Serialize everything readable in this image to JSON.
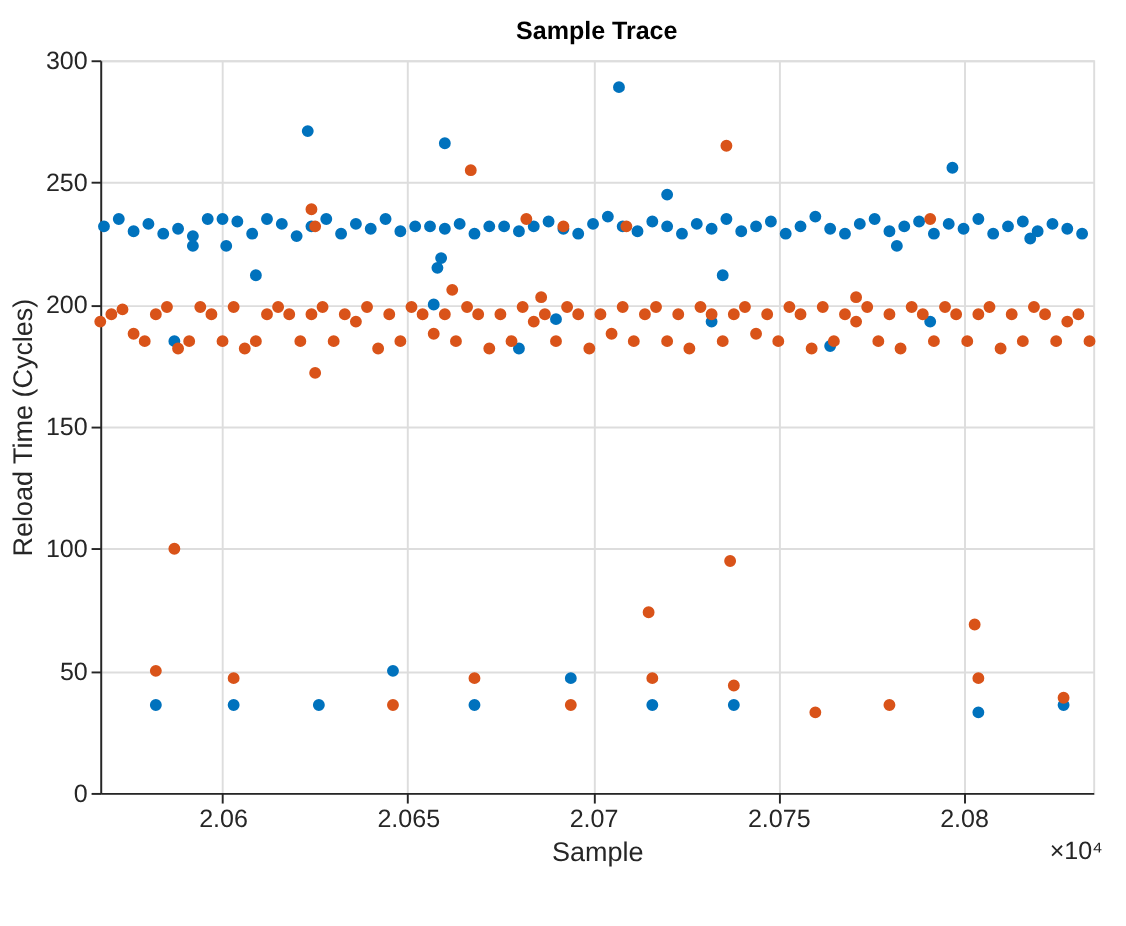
{
  "chart_data": {
    "type": "scatter",
    "title": "Sample Trace",
    "xlabel": "Sample",
    "ylabel": "Reload Time (Cycles)",
    "annotations": [
      "×10⁴"
    ],
    "xlim": [
      2.0567,
      2.0835
    ],
    "ylim": [
      0,
      300
    ],
    "xticks": [
      2.06,
      2.065,
      2.07,
      2.075,
      2.08
    ],
    "yticks": [
      0,
      50,
      100,
      150,
      200,
      250,
      300
    ],
    "grid": true,
    "marker": "circle",
    "series": [
      {
        "color": "#0072bd",
        "x": [
          2.0568,
          2.0572,
          2.0576,
          2.058,
          2.0584,
          2.0588,
          2.0592,
          2.0596,
          2.06,
          2.0604,
          2.0608,
          2.0612,
          2.0616,
          2.062,
          2.0624,
          2.0628,
          2.0632,
          2.0636,
          2.064,
          2.0644,
          2.0648,
          2.0652,
          2.0656,
          2.066,
          2.0664,
          2.0668,
          2.0672,
          2.0676,
          2.068,
          2.0684,
          2.0688,
          2.0692,
          2.0696,
          2.07,
          2.0704,
          2.0708,
          2.0712,
          2.0716,
          2.072,
          2.0724,
          2.0728,
          2.0732,
          2.0736,
          2.074,
          2.0744,
          2.0748,
          2.0752,
          2.0756,
          2.076,
          2.0764,
          2.0768,
          2.0772,
          2.0776,
          2.078,
          2.0784,
          2.0788,
          2.0792,
          2.0796,
          2.08,
          2.0804,
          2.0808,
          2.0812,
          2.0816,
          2.082,
          2.0824,
          2.0828,
          2.0832,
          2.0582,
          2.0603,
          2.0626,
          2.0646,
          2.0668,
          2.0694,
          2.0716,
          2.0738,
          2.076,
          2.078,
          2.0804,
          2.0827,
          2.0623,
          2.066,
          2.0707,
          2.072,
          2.0735,
          2.0797,
          2.0609,
          2.0592,
          2.0601,
          2.0658,
          2.0659,
          2.0657,
          2.068,
          2.069,
          2.0764,
          2.0791,
          2.0732,
          2.0782,
          2.0818,
          2.0587
        ],
        "values": [
          232,
          235,
          230,
          233,
          229,
          231,
          228,
          235,
          235,
          234,
          229,
          235,
          233,
          228,
          232,
          235,
          229,
          233,
          231,
          235,
          230,
          232,
          232,
          231,
          233,
          229,
          232,
          232,
          230,
          232,
          234,
          231,
          229,
          233,
          236,
          232,
          230,
          234,
          232,
          229,
          233,
          231,
          235,
          230,
          232,
          234,
          229,
          232,
          236,
          231,
          229,
          233,
          235,
          230,
          232,
          234,
          229,
          233,
          231,
          235,
          229,
          232,
          234,
          230,
          233,
          231,
          229,
          36,
          36,
          36,
          50,
          36,
          47,
          36,
          36,
          null,
          null,
          33,
          36,
          271,
          266,
          289,
          245,
          212,
          256,
          212,
          224,
          224,
          215,
          219,
          200,
          182,
          194,
          183,
          193,
          193,
          224,
          227,
          185
        ]
      },
      {
        "color": "#d95319",
        "x": [
          2.0567,
          2.057,
          2.0573,
          2.0576,
          2.0579,
          2.0582,
          2.0585,
          2.0588,
          2.0591,
          2.0594,
          2.0597,
          2.06,
          2.0603,
          2.0606,
          2.0609,
          2.0612,
          2.0615,
          2.0618,
          2.0621,
          2.0624,
          2.0627,
          2.063,
          2.0633,
          2.0636,
          2.0639,
          2.0642,
          2.0645,
          2.0648,
          2.0651,
          2.0654,
          2.0657,
          2.066,
          2.0663,
          2.0666,
          2.0669,
          2.0672,
          2.0675,
          2.0678,
          2.0681,
          2.0684,
          2.0687,
          2.069,
          2.0693,
          2.0696,
          2.0699,
          2.0702,
          2.0705,
          2.0708,
          2.0711,
          2.0714,
          2.0717,
          2.072,
          2.0723,
          2.0726,
          2.0729,
          2.0732,
          2.0735,
          2.0738,
          2.0741,
          2.0744,
          2.0747,
          2.075,
          2.0753,
          2.0756,
          2.0759,
          2.0762,
          2.0765,
          2.0768,
          2.0771,
          2.0774,
          2.0777,
          2.078,
          2.0783,
          2.0786,
          2.0789,
          2.0792,
          2.0795,
          2.0798,
          2.0801,
          2.0804,
          2.0807,
          2.081,
          2.0813,
          2.0816,
          2.0819,
          2.0822,
          2.0825,
          2.0828,
          2.0831,
          2.0834,
          2.0582,
          2.0587,
          2.0603,
          2.0646,
          2.0668,
          2.0694,
          2.0715,
          2.0716,
          2.0737,
          2.0738,
          2.076,
          2.078,
          2.0803,
          2.0804,
          2.0827,
          2.0624,
          2.0625,
          2.0625,
          2.0667,
          2.0662,
          2.0682,
          2.0692,
          2.0686,
          2.0709,
          2.0736,
          2.0791,
          2.0771
        ],
        "values": [
          193,
          196,
          198,
          188,
          185,
          196,
          199,
          182,
          185,
          199,
          196,
          185,
          199,
          182,
          185,
          196,
          199,
          196,
          185,
          196,
          199,
          185,
          196,
          193,
          199,
          182,
          196,
          185,
          199,
          196,
          188,
          196,
          185,
          199,
          196,
          182,
          196,
          185,
          199,
          193,
          196,
          185,
          199,
          196,
          182,
          196,
          188,
          199,
          185,
          196,
          199,
          185,
          196,
          182,
          199,
          196,
          185,
          196,
          199,
          188,
          196,
          185,
          199,
          196,
          182,
          199,
          185,
          196,
          193,
          199,
          185,
          196,
          182,
          199,
          196,
          185,
          199,
          196,
          185,
          196,
          199,
          182,
          196,
          185,
          199,
          196,
          185,
          193,
          196,
          185,
          50,
          100,
          47,
          36,
          47,
          36,
          74,
          47,
          95,
          44,
          33,
          36,
          69,
          47,
          39,
          239,
          232,
          172,
          255,
          206,
          235,
          232,
          203,
          232,
          265,
          235,
          203
        ]
      }
    ]
  }
}
